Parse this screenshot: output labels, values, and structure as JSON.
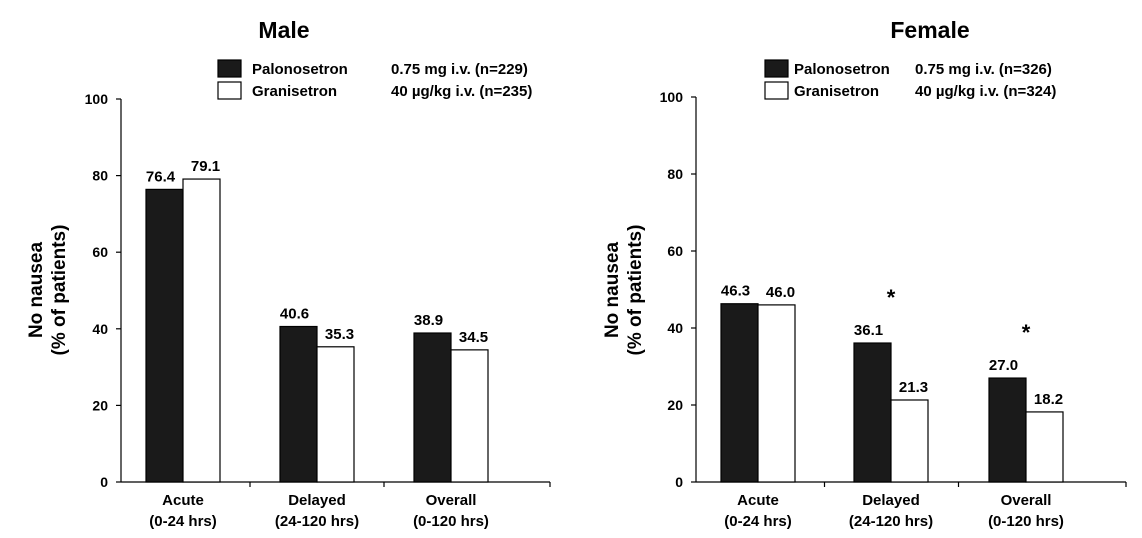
{
  "chart_data": [
    {
      "type": "bar",
      "title": "Male",
      "ylabel_lines": [
        "No nausea",
        "(% of patients)"
      ],
      "ylim": [
        0,
        100
      ],
      "yticks": [
        0,
        20,
        40,
        60,
        80,
        100
      ],
      "legend_position": "top-right",
      "categories": [
        {
          "line1": "Acute",
          "line2": "(0-24 hrs)"
        },
        {
          "line1": "Delayed",
          "line2": "(24-120 hrs)"
        },
        {
          "line1": "Overall",
          "line2": "(0-120 hrs)"
        }
      ],
      "series": [
        {
          "name": "Palonosetron",
          "dose": "0.75 mg i.v. (n=229)",
          "color": "#1a1a1a",
          "values": [
            76.4,
            40.6,
            38.9
          ],
          "labels": [
            "76.4",
            "40.6",
            "38.9"
          ]
        },
        {
          "name": "Granisetron",
          "dose": "40 µg/kg i.v. (n=235)",
          "color": "#ffffff",
          "values": [
            79.1,
            35.3,
            34.5
          ],
          "labels": [
            "79.1",
            "35.3",
            "34.5"
          ]
        }
      ],
      "significance_markers": [
        "",
        "",
        ""
      ]
    },
    {
      "type": "bar",
      "title": "Female",
      "ylabel_lines": [
        "No nausea",
        "(% of patients)"
      ],
      "ylim": [
        0,
        100
      ],
      "yticks": [
        0,
        20,
        40,
        60,
        80,
        100
      ],
      "legend_position": "top-right",
      "categories": [
        {
          "line1": "Acute",
          "line2": "(0-24 hrs)"
        },
        {
          "line1": "Delayed",
          "line2": "(24-120 hrs)"
        },
        {
          "line1": "Overall",
          "line2": "(0-120 hrs)"
        }
      ],
      "series": [
        {
          "name": "Palonosetron",
          "dose": "0.75 mg i.v. (n=326)",
          "color": "#1a1a1a",
          "values": [
            46.3,
            36.1,
            27.0
          ],
          "labels": [
            "46.3",
            "36.1",
            "27.0"
          ]
        },
        {
          "name": "Granisetron",
          "dose": "40 µg/kg i.v. (n=324)",
          "color": "#ffffff",
          "values": [
            46.0,
            21.3,
            18.2
          ],
          "labels": [
            "46.0",
            "21.3",
            "18.2"
          ]
        }
      ],
      "significance_markers": [
        "",
        "*",
        "*"
      ]
    }
  ]
}
